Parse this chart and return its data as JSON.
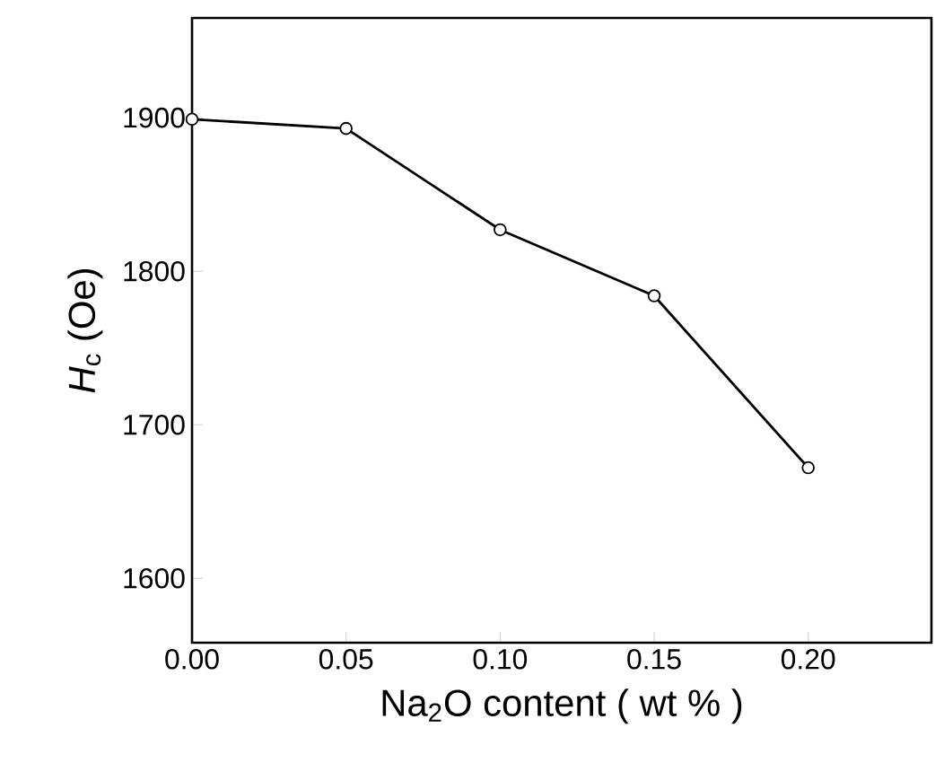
{
  "chart_data": {
    "type": "line",
    "xlabel": "Na$_{2}$O  content ( wt % )",
    "ylabel": "*H*$_{c}$ (Oe)",
    "x": [
      0.0,
      0.05,
      0.1,
      0.15,
      0.2
    ],
    "series": [
      {
        "color": "#000000",
        "values": [
          1899,
          1893,
          1827,
          1784,
          1672
        ]
      }
    ],
    "xlim": [
      0,
      0.24
    ],
    "ylim": [
      1558,
      1965
    ],
    "xticks": [
      {
        "value": 0,
        "label": "0.00"
      },
      {
        "value": 0.05,
        "label": "0.05"
      },
      {
        "value": 0.1,
        "label": "0.10"
      },
      {
        "value": 0.15,
        "label": "0.15"
      },
      {
        "value": 0.2,
        "label": "0.20"
      }
    ],
    "yticks": [
      1600,
      1700,
      1800,
      1900
    ],
    "marker": "circle",
    "line_style": "solid",
    "grid": false,
    "legend": false
  }
}
